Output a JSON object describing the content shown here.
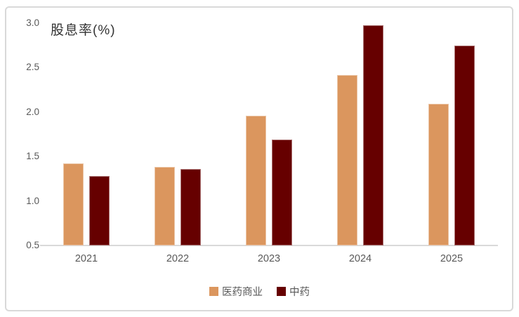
{
  "title": "股息率(%)",
  "colors": {
    "series_pharma_commerce": "#DB965E",
    "series_tcm": "#660000",
    "axis_line": "#D9D9D9",
    "tick_text": "#595959",
    "title_text": "#333333",
    "frame_border": "#D9D9D9"
  },
  "chart_data": {
    "type": "bar",
    "title": "股息率(%)",
    "categories": [
      "2021",
      "2022",
      "2023",
      "2024",
      "2025"
    ],
    "series": [
      {
        "name": "医药商业",
        "color": "#DB965E",
        "values": [
          1.42,
          1.38,
          1.96,
          2.42,
          2.09
        ]
      },
      {
        "name": "中药",
        "color": "#660000",
        "values": [
          1.28,
          1.36,
          1.69,
          2.98,
          2.75
        ]
      }
    ],
    "ylabel": "股息率(%)",
    "xlabel": "",
    "ylim": [
      0.5,
      3.0
    ],
    "yticks": [
      3.0,
      2.5,
      2.0,
      1.5,
      1.0,
      0.5
    ],
    "grid": false,
    "legend_position": "bottom"
  }
}
